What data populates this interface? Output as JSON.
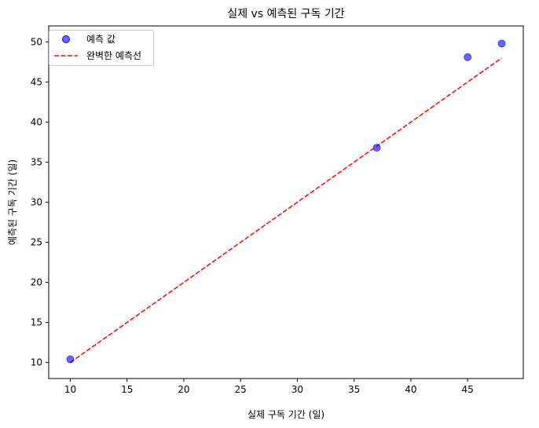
{
  "chart_data": {
    "type": "scatter",
    "title": "실제 vs 예측된 구독 기간",
    "xlabel": "실제 구독 기간 (일)",
    "ylabel": "예측된 구독 기간 (일)",
    "xlim": [
      8.1,
      49.9
    ],
    "ylim": [
      8.0,
      52.0
    ],
    "xticks": [
      10,
      15,
      20,
      25,
      30,
      35,
      40,
      45
    ],
    "yticks": [
      10,
      15,
      20,
      25,
      30,
      35,
      40,
      45,
      50
    ],
    "grid": false,
    "legend_position": "top-left",
    "series": [
      {
        "name": "예측 값",
        "kind": "scatter",
        "color": "#0000ff",
        "alpha": 0.6,
        "points": [
          {
            "x": 10,
            "y": 10.4
          },
          {
            "x": 37,
            "y": 36.8
          },
          {
            "x": 45,
            "y": 48.1
          },
          {
            "x": 48,
            "y": 49.8
          }
        ]
      },
      {
        "name": "완벽한 예측선",
        "kind": "line",
        "style": "dashed",
        "color": "#ff0000",
        "points": [
          {
            "x": 10,
            "y": 10
          },
          {
            "x": 37,
            "y": 37
          },
          {
            "x": 45,
            "y": 45
          },
          {
            "x": 48,
            "y": 48
          }
        ]
      }
    ]
  }
}
